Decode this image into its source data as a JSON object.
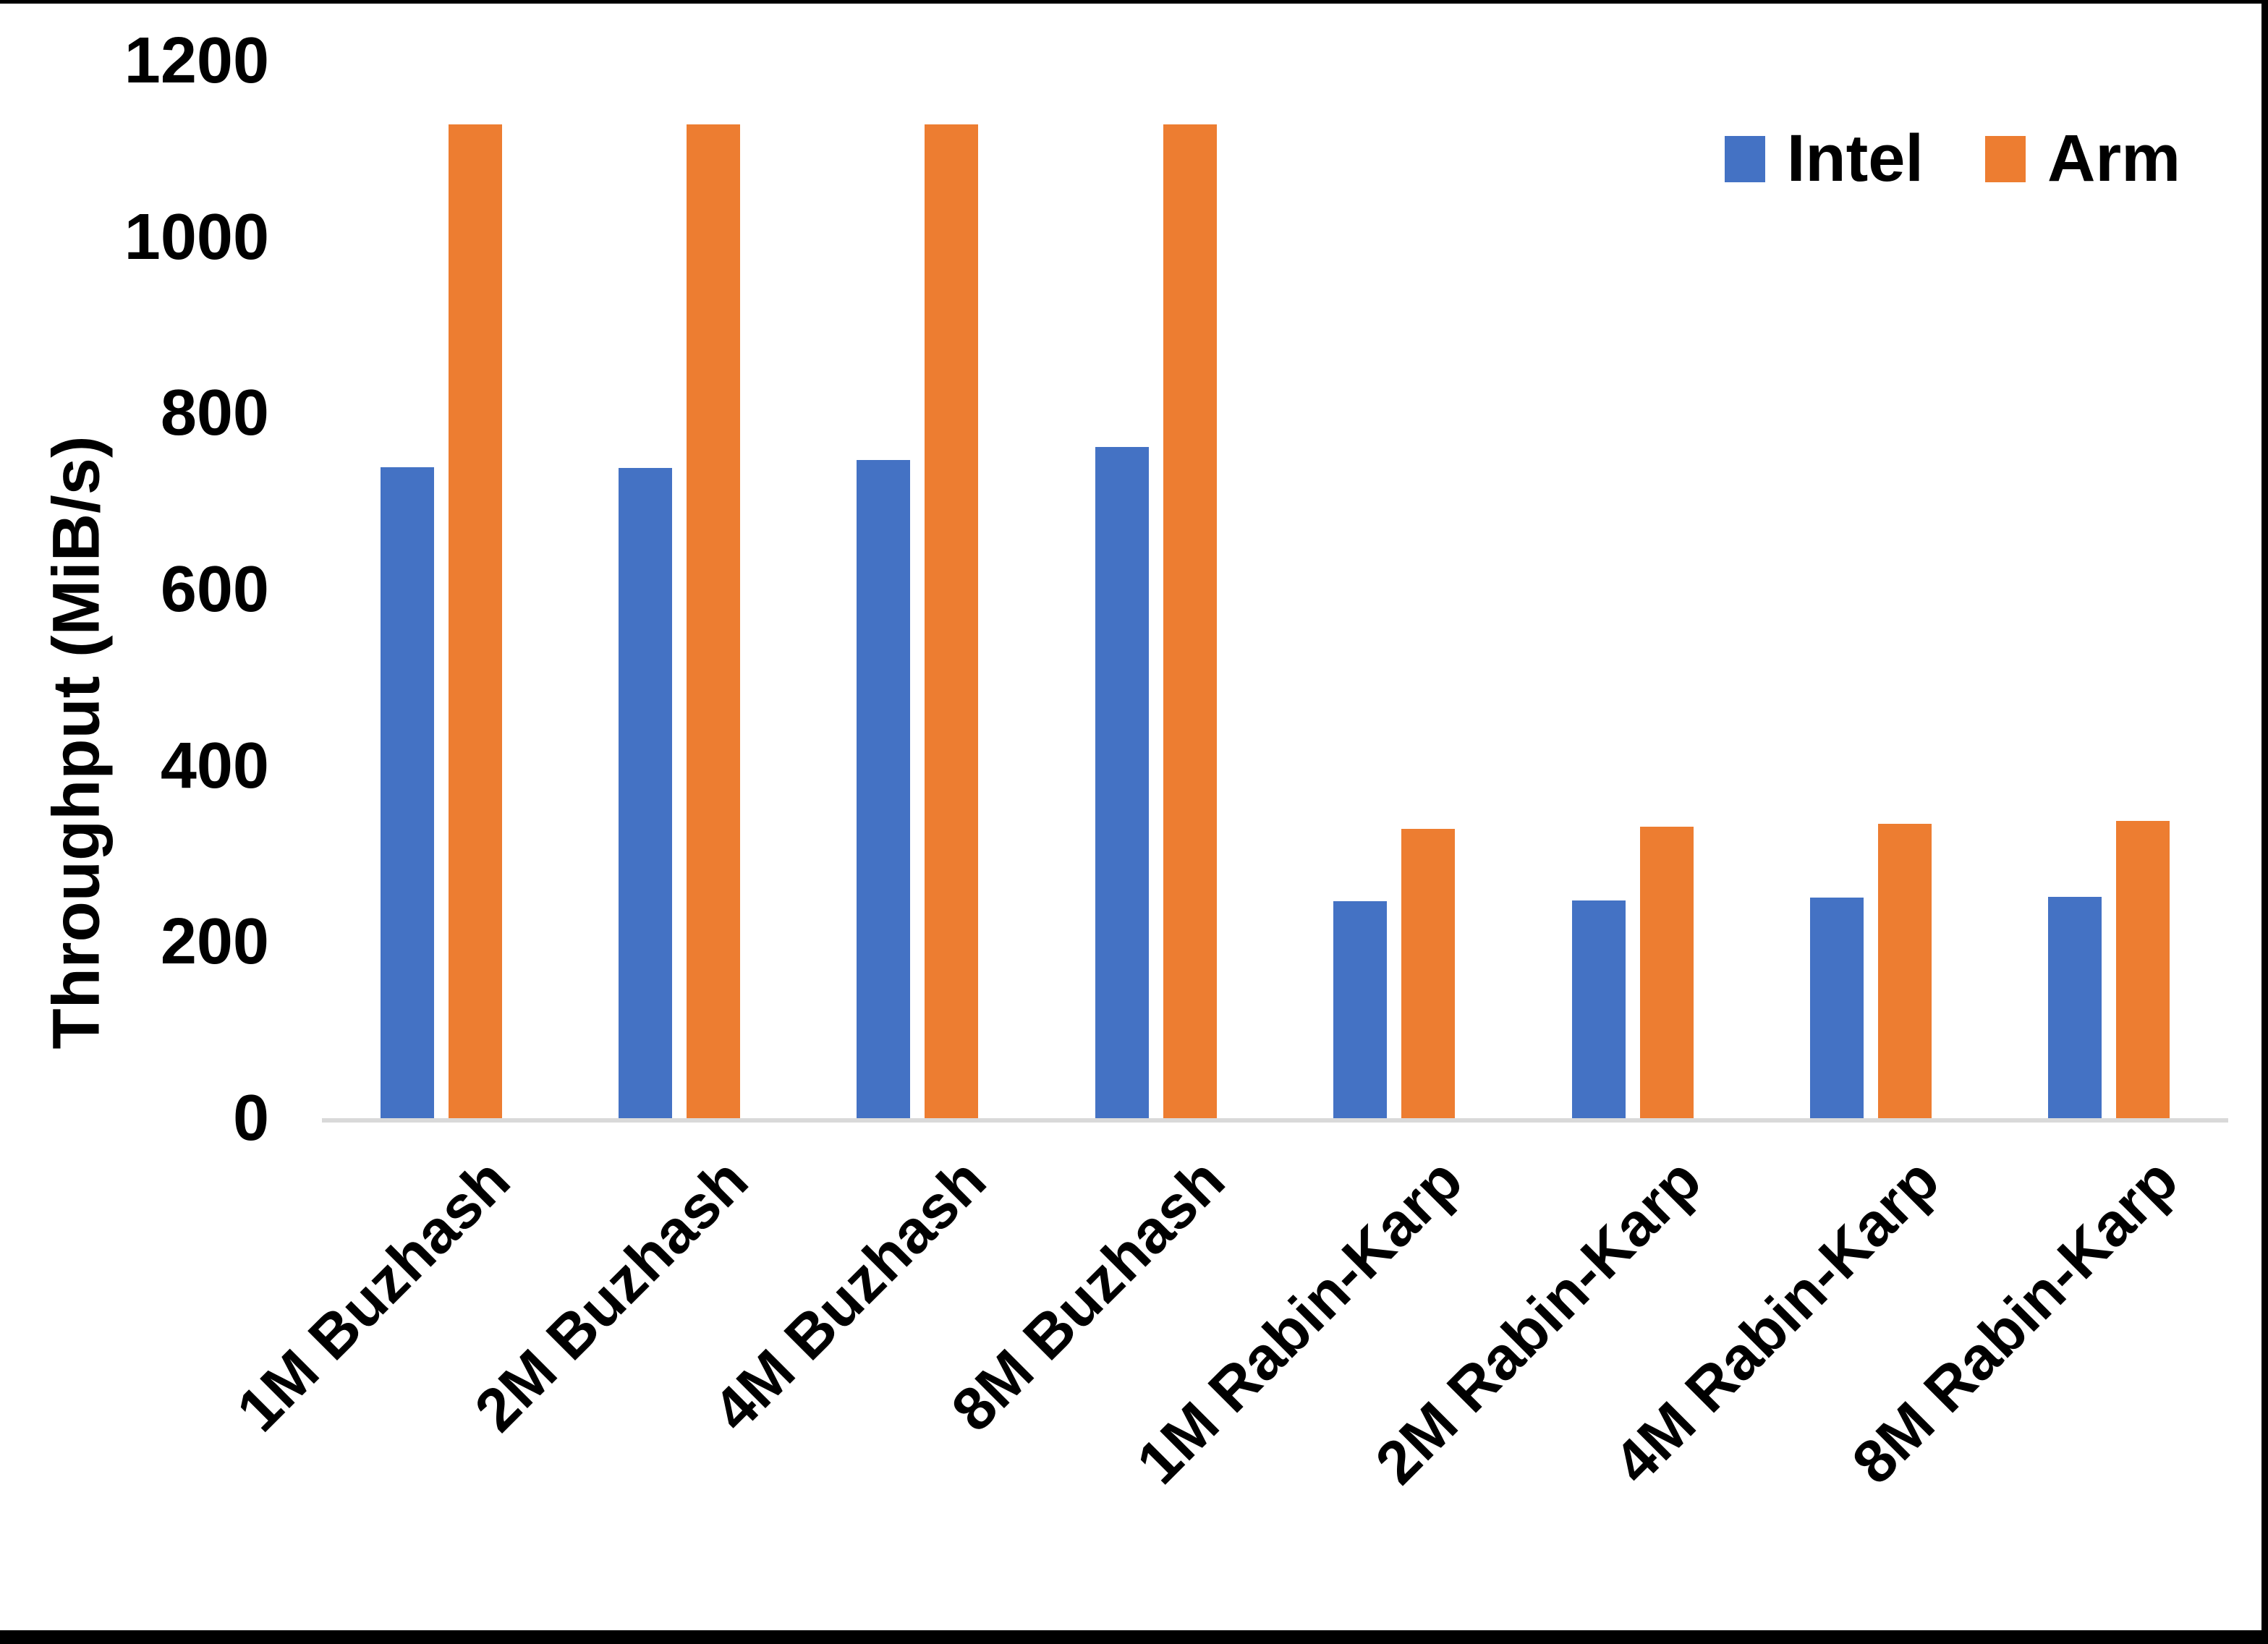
{
  "page": {
    "background_color": "#FFFFFF",
    "frame_border_color": "#000000"
  },
  "chart_data": {
    "type": "bar",
    "title": "",
    "xlabel": "",
    "ylabel": "Throughput (MiB/s)",
    "ylim": [
      0,
      1200
    ],
    "yticks": [
      0,
      200,
      400,
      600,
      800,
      1000,
      1200
    ],
    "grid": false,
    "axis_line_color": "#D9D9D9",
    "text_color": "#000000",
    "legend_position": "top-right",
    "categories": [
      "1M Buzhash",
      "2M Buzhash",
      "4M Buzhash",
      "8M Buzhash",
      "1M Rabin-Karp",
      "2M Rabin-Karp",
      "4M Rabin-Karp",
      "8M Rabin-Karp"
    ],
    "series": [
      {
        "name": "Intel",
        "color": "#4472C4",
        "values": [
          739,
          738,
          747,
          762,
          246,
          247,
          250,
          251
        ]
      },
      {
        "name": "Arm",
        "color": "#ED7D31",
        "values": [
          1128,
          1128,
          1128,
          1128,
          328,
          331,
          334,
          337
        ]
      }
    ]
  }
}
